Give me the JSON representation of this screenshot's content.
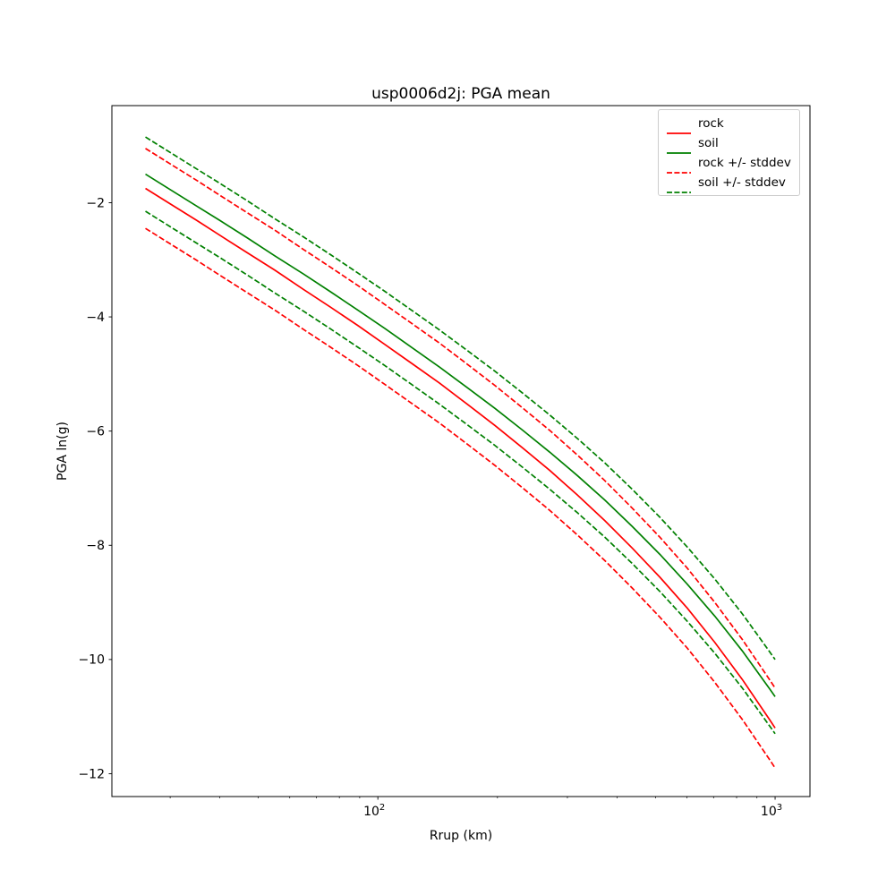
{
  "chart_data": {
    "type": "line",
    "title": "usp0006d2j: PGA mean",
    "xlabel": "Rrup (km)",
    "ylabel": "PGA ln(g)",
    "x_scale": "log10",
    "xlim": [
      21.4,
      1224
    ],
    "ylim": [
      -12.4,
      -0.3
    ],
    "grid": false,
    "legend_position": "upper right",
    "x_major_ticks": [
      {
        "value": 100,
        "base": "10",
        "exp": "2"
      },
      {
        "value": 1000,
        "base": "10",
        "exp": "3"
      }
    ],
    "x_minor_ticks": [
      30,
      40,
      50,
      60,
      70,
      80,
      90,
      200,
      300,
      400,
      500,
      600,
      700,
      800,
      900
    ],
    "y_ticks": [
      {
        "value": -2,
        "label": "−2"
      },
      {
        "value": -4,
        "label": "−4"
      },
      {
        "value": -6,
        "label": "−6"
      },
      {
        "value": -8,
        "label": "−8"
      },
      {
        "value": -10,
        "label": "−10"
      },
      {
        "value": -12,
        "label": "−12"
      }
    ],
    "x": [
      26,
      30,
      35,
      40,
      47,
      55,
      65,
      76,
      89,
      104,
      122,
      143,
      168,
      197,
      231,
      271,
      318,
      373,
      437,
      513,
      601,
      705,
      827,
      970,
      1000
    ],
    "series": [
      {
        "name": "rock",
        "color": "#ff0000",
        "style": "solid",
        "values": [
          -1.75,
          -2.02,
          -2.31,
          -2.57,
          -2.88,
          -3.18,
          -3.52,
          -3.83,
          -4.15,
          -4.48,
          -4.82,
          -5.16,
          -5.53,
          -5.9,
          -6.29,
          -6.69,
          -7.12,
          -7.57,
          -8.05,
          -8.56,
          -9.1,
          -9.7,
          -10.35,
          -11.06,
          -11.2
        ]
      },
      {
        "name": "soil",
        "color": "#008000",
        "style": "solid",
        "values": [
          -1.5,
          -1.77,
          -2.06,
          -2.31,
          -2.62,
          -2.93,
          -3.25,
          -3.56,
          -3.88,
          -4.2,
          -4.54,
          -4.88,
          -5.24,
          -5.6,
          -5.98,
          -6.37,
          -6.78,
          -7.21,
          -7.67,
          -8.16,
          -8.68,
          -9.24,
          -9.85,
          -10.52,
          -10.65
        ]
      },
      {
        "name": "rock +/- stddev",
        "color": "#ff0000",
        "style": "dashed",
        "stddev": 0.7,
        "values_upper": [
          -1.05,
          -1.32,
          -1.61,
          -1.87,
          -2.18,
          -2.48,
          -2.82,
          -3.13,
          -3.45,
          -3.78,
          -4.12,
          -4.46,
          -4.83,
          -5.2,
          -5.59,
          -5.99,
          -6.42,
          -6.87,
          -7.35,
          -7.86,
          -8.4,
          -9.0,
          -9.65,
          -10.36,
          -10.5
        ],
        "values_lower": [
          -2.45,
          -2.72,
          -3.01,
          -3.27,
          -3.58,
          -3.88,
          -4.22,
          -4.53,
          -4.85,
          -5.18,
          -5.52,
          -5.86,
          -6.23,
          -6.6,
          -6.99,
          -7.39,
          -7.82,
          -8.27,
          -8.75,
          -9.26,
          -9.8,
          -10.4,
          -11.05,
          -11.76,
          -11.9
        ]
      },
      {
        "name": "soil +/- stddev",
        "color": "#008000",
        "style": "dashed",
        "stddev": 0.65,
        "values_upper": [
          -0.85,
          -1.12,
          -1.41,
          -1.66,
          -1.97,
          -2.28,
          -2.6,
          -2.91,
          -3.23,
          -3.55,
          -3.89,
          -4.23,
          -4.59,
          -4.95,
          -5.33,
          -5.72,
          -6.13,
          -6.56,
          -7.02,
          -7.51,
          -8.03,
          -8.59,
          -9.2,
          -9.87,
          -10.0
        ],
        "values_lower": [
          -2.15,
          -2.42,
          -2.71,
          -2.96,
          -3.27,
          -3.58,
          -3.9,
          -4.21,
          -4.53,
          -4.85,
          -5.19,
          -5.53,
          -5.89,
          -6.25,
          -6.63,
          -7.02,
          -7.43,
          -7.86,
          -8.32,
          -8.81,
          -9.33,
          -9.89,
          -10.5,
          -11.17,
          -11.3
        ]
      }
    ],
    "legend": {
      "labels": [
        "rock",
        "soil",
        "rock +/- stddev",
        "soil +/- stddev"
      ]
    }
  }
}
